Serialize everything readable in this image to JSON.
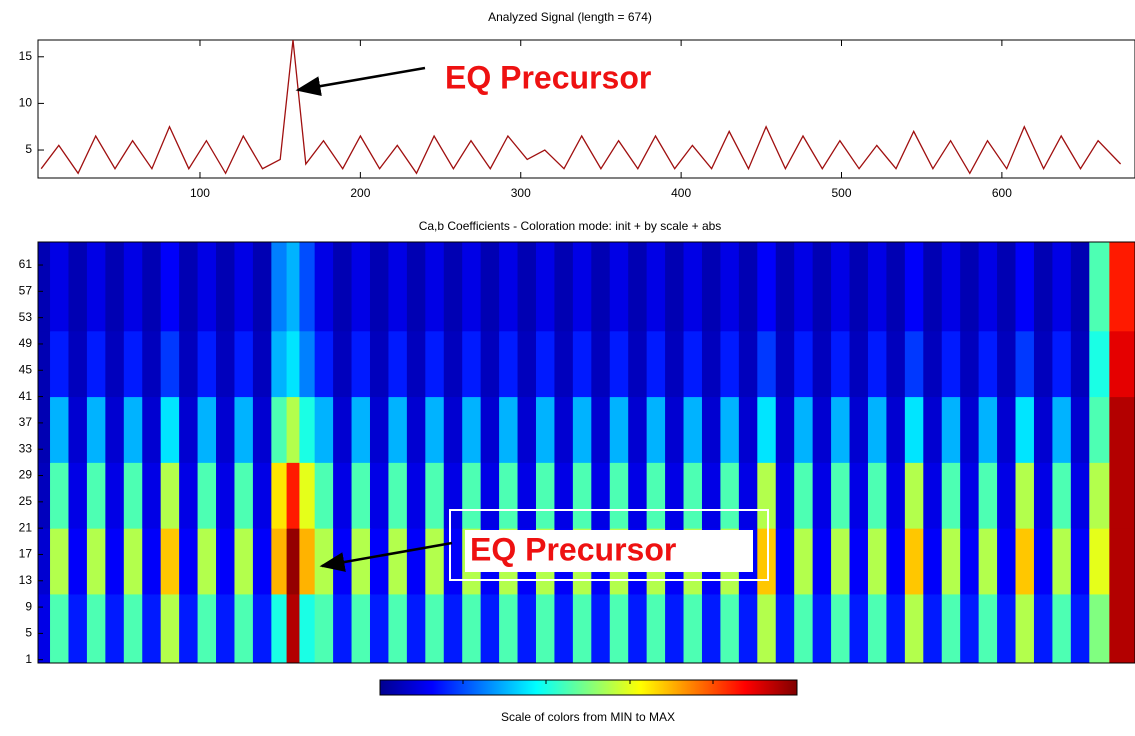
{
  "chart_data": [
    {
      "type": "line",
      "title": "Analyzed Signal  (length = 674)",
      "color": "#a01010",
      "xlim": [
        -1,
        683
      ],
      "ylim": [
        2,
        16.8
      ],
      "xticks": [
        100,
        200,
        300,
        400,
        500,
        600
      ],
      "yticks": [
        5,
        10,
        15
      ],
      "annotation": "EQ Precursor",
      "x": [
        1,
        12,
        24,
        35,
        47,
        58,
        70,
        81,
        93,
        104,
        116,
        127,
        139,
        150,
        158,
        166,
        177,
        189,
        200,
        212,
        223,
        235,
        246,
        258,
        269,
        281,
        292,
        304,
        315,
        327,
        338,
        350,
        361,
        373,
        384,
        396,
        407,
        419,
        430,
        442,
        453,
        465,
        476,
        488,
        499,
        511,
        522,
        534,
        545,
        557,
        568,
        580,
        591,
        603,
        614,
        626,
        637,
        649,
        660,
        674
      ],
      "values": [
        3,
        5.5,
        2.5,
        6.5,
        3,
        6,
        3,
        7.5,
        3,
        6,
        2.5,
        6.5,
        3,
        4,
        16.8,
        3.5,
        6,
        3,
        6.5,
        3,
        5.5,
        2.5,
        6.5,
        3,
        6,
        3,
        6.5,
        4,
        5,
        3,
        6.5,
        3,
        6,
        3,
        6.5,
        3,
        5.5,
        3,
        7,
        3,
        7.5,
        3,
        6.5,
        3,
        6,
        3,
        5.5,
        3,
        7,
        3,
        6,
        2.5,
        6,
        3,
        7.5,
        3,
        6.5,
        3,
        6,
        3.5
      ]
    },
    {
      "type": "heatmap",
      "title": "Ca,b Coefficients - Coloration mode: init + by scale + abs",
      "colormap": "jet",
      "zlim": [
        0,
        100
      ],
      "colorbar_label": "Scale of colors from MIN to MAX",
      "annotation": "EQ Precursor",
      "xlim": [
        -1,
        683
      ],
      "ylim": [
        0.5,
        64.5
      ],
      "yticks": [
        1,
        5,
        9,
        13,
        17,
        21,
        25,
        29,
        33,
        37,
        41,
        45,
        49,
        53,
        57,
        61
      ],
      "x": [
        1,
        12,
        24,
        35,
        47,
        58,
        70,
        81,
        93,
        104,
        116,
        127,
        139,
        150,
        158,
        166,
        177,
        189,
        200,
        212,
        223,
        235,
        246,
        258,
        269,
        281,
        292,
        304,
        315,
        327,
        338,
        350,
        361,
        373,
        384,
        396,
        407,
        419,
        430,
        442,
        453,
        465,
        476,
        488,
        499,
        511,
        522,
        534,
        545,
        557,
        568,
        580,
        591,
        603,
        614,
        626,
        637,
        649,
        660,
        674
      ],
      "y_bins": [
        0.5,
        11,
        21,
        31,
        41,
        51,
        64.5
      ],
      "z": [
        [
          10,
          45,
          15,
          45,
          15,
          45,
          15,
          55,
          15,
          45,
          15,
          45,
          15,
          40,
          95,
          40,
          45,
          15,
          45,
          15,
          45,
          15,
          45,
          15,
          45,
          15,
          45,
          15,
          45,
          15,
          45,
          15,
          45,
          15,
          45,
          15,
          45,
          15,
          45,
          15,
          55,
          15,
          45,
          15,
          45,
          15,
          45,
          15,
          55,
          15,
          45,
          15,
          45,
          15,
          55,
          15,
          45,
          15,
          50,
          95
        ],
        [
          8,
          55,
          12,
          55,
          12,
          55,
          12,
          68,
          12,
          55,
          12,
          55,
          12,
          70,
          98,
          70,
          55,
          12,
          55,
          12,
          55,
          12,
          55,
          12,
          55,
          12,
          55,
          12,
          55,
          12,
          55,
          12,
          55,
          12,
          55,
          12,
          55,
          12,
          55,
          12,
          68,
          12,
          55,
          12,
          55,
          12,
          55,
          12,
          68,
          12,
          55,
          12,
          55,
          12,
          68,
          12,
          55,
          12,
          60,
          95
        ],
        [
          6,
          45,
          10,
          45,
          10,
          45,
          10,
          55,
          10,
          45,
          10,
          45,
          10,
          65,
          85,
          60,
          45,
          10,
          45,
          10,
          45,
          10,
          45,
          10,
          45,
          10,
          45,
          10,
          45,
          10,
          45,
          10,
          45,
          10,
          45,
          10,
          45,
          10,
          45,
          10,
          55,
          10,
          45,
          10,
          45,
          10,
          45,
          10,
          55,
          10,
          45,
          10,
          45,
          10,
          55,
          10,
          45,
          10,
          55,
          95
        ],
        [
          5,
          30,
          8,
          30,
          8,
          30,
          8,
          35,
          8,
          30,
          8,
          30,
          8,
          45,
          55,
          40,
          30,
          8,
          30,
          8,
          30,
          8,
          30,
          8,
          30,
          8,
          30,
          8,
          30,
          8,
          30,
          8,
          30,
          8,
          30,
          8,
          30,
          8,
          30,
          8,
          35,
          8,
          30,
          8,
          30,
          8,
          30,
          8,
          35,
          8,
          30,
          8,
          30,
          8,
          35,
          8,
          30,
          8,
          45,
          95
        ],
        [
          5,
          15,
          6,
          15,
          6,
          15,
          6,
          18,
          6,
          15,
          6,
          15,
          6,
          30,
          35,
          25,
          15,
          6,
          15,
          6,
          15,
          6,
          15,
          6,
          15,
          6,
          15,
          6,
          15,
          6,
          15,
          6,
          15,
          6,
          15,
          6,
          15,
          6,
          15,
          6,
          18,
          6,
          15,
          6,
          15,
          6,
          15,
          6,
          18,
          6,
          15,
          6,
          15,
          6,
          18,
          6,
          15,
          6,
          40,
          90
        ],
        [
          5,
          10,
          5,
          10,
          5,
          10,
          5,
          12,
          5,
          10,
          5,
          10,
          5,
          25,
          30,
          20,
          10,
          5,
          10,
          5,
          10,
          5,
          10,
          5,
          10,
          5,
          10,
          5,
          10,
          5,
          10,
          5,
          10,
          5,
          10,
          5,
          10,
          5,
          10,
          5,
          12,
          5,
          10,
          5,
          10,
          5,
          10,
          5,
          12,
          5,
          10,
          5,
          10,
          5,
          12,
          5,
          10,
          5,
          45,
          85
        ]
      ]
    }
  ]
}
